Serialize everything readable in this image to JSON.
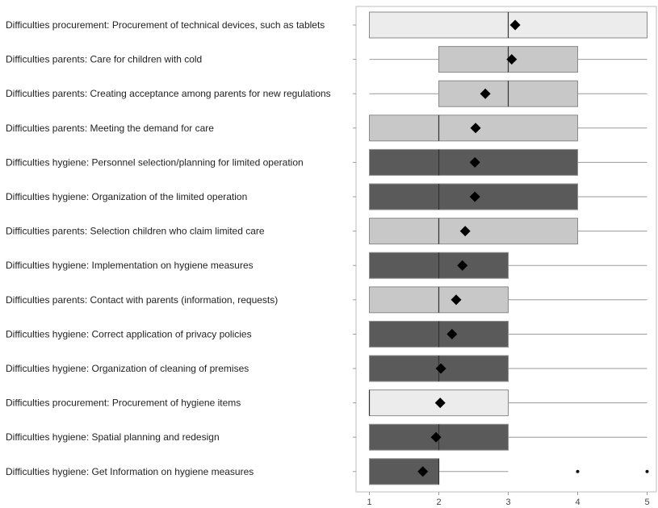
{
  "chart_data": {
    "type": "box",
    "orientation": "horizontal",
    "title": "",
    "xlabel": "",
    "ylabel": "",
    "xlim": [
      1,
      5
    ],
    "xticks": [
      1,
      2,
      3,
      4,
      5
    ],
    "grid": false,
    "mean_marker": "diamond",
    "group_colors": {
      "procurement": "#ececec",
      "parents": "#c8c8c8",
      "hygiene": "#5a5a5a"
    },
    "boxes": [
      {
        "label": "Difficulties procurement: Procurement of technical devices, such as tablets",
        "group": "procurement",
        "whisker_low": 1,
        "q1": 1,
        "median": 3,
        "q3": 5,
        "whisker_high": 5,
        "mean": 3.1,
        "outliers": []
      },
      {
        "label": "Difficulties parents: Care for children with cold",
        "group": "parents",
        "whisker_low": 1,
        "q1": 2,
        "median": 3,
        "q3": 4,
        "whisker_high": 5,
        "mean": 3.05,
        "outliers": []
      },
      {
        "label": "Difficulties parents: Creating acceptance among parents for new regulations",
        "group": "parents",
        "whisker_low": 1,
        "q1": 2,
        "median": 3,
        "q3": 4,
        "whisker_high": 5,
        "mean": 2.67,
        "outliers": []
      },
      {
        "label": "Difficulties parents: Meeting the demand for care",
        "group": "parents",
        "whisker_low": 1,
        "q1": 1,
        "median": 2,
        "q3": 4,
        "whisker_high": 5,
        "mean": 2.53,
        "outliers": []
      },
      {
        "label": "Difficulties hygiene: Personnel selection/planning for limited operation",
        "group": "hygiene",
        "whisker_low": 1,
        "q1": 1,
        "median": 2,
        "q3": 4,
        "whisker_high": 5,
        "mean": 2.52,
        "outliers": []
      },
      {
        "label": "Difficulties hygiene: Organization of the limited operation",
        "group": "hygiene",
        "whisker_low": 1,
        "q1": 1,
        "median": 2,
        "q3": 4,
        "whisker_high": 5,
        "mean": 2.52,
        "outliers": []
      },
      {
        "label": "Difficulties parents: Selection children who claim limited care",
        "group": "parents",
        "whisker_low": 1,
        "q1": 1,
        "median": 2,
        "q3": 4,
        "whisker_high": 5,
        "mean": 2.38,
        "outliers": []
      },
      {
        "label": "Difficulties hygiene: Implementation on hygiene measures",
        "group": "hygiene",
        "whisker_low": 1,
        "q1": 1,
        "median": 2,
        "q3": 3,
        "whisker_high": 5,
        "mean": 2.34,
        "outliers": []
      },
      {
        "label": "Difficulties parents: Contact with parents (information, requests)",
        "group": "parents",
        "whisker_low": 1,
        "q1": 1,
        "median": 2,
        "q3": 3,
        "whisker_high": 5,
        "mean": 2.25,
        "outliers": []
      },
      {
        "label": "Difficulties hygiene: Correct application of privacy policies",
        "group": "hygiene",
        "whisker_low": 1,
        "q1": 1,
        "median": 2,
        "q3": 3,
        "whisker_high": 5,
        "mean": 2.19,
        "outliers": []
      },
      {
        "label": "Difficulties hygiene: Organization of cleaning of premises",
        "group": "hygiene",
        "whisker_low": 1,
        "q1": 1,
        "median": 2,
        "q3": 3,
        "whisker_high": 5,
        "mean": 2.03,
        "outliers": []
      },
      {
        "label": "Difficulties procurement: Procurement of hygiene items",
        "group": "procurement",
        "whisker_low": 1,
        "q1": 1,
        "median": 1,
        "q3": 3,
        "whisker_high": 5,
        "mean": 2.02,
        "outliers": []
      },
      {
        "label": "Difficulties hygiene: Spatial planning and redesign",
        "group": "hygiene",
        "whisker_low": 1,
        "q1": 1,
        "median": 2,
        "q3": 3,
        "whisker_high": 5,
        "mean": 1.96,
        "outliers": []
      },
      {
        "label": "Difficulties hygiene: Get Information on hygiene measures",
        "group": "hygiene",
        "whisker_low": 1,
        "q1": 1,
        "median": 2,
        "q3": 2,
        "whisker_high": 3,
        "mean": 1.77,
        "outliers": [
          4,
          5
        ]
      }
    ]
  }
}
